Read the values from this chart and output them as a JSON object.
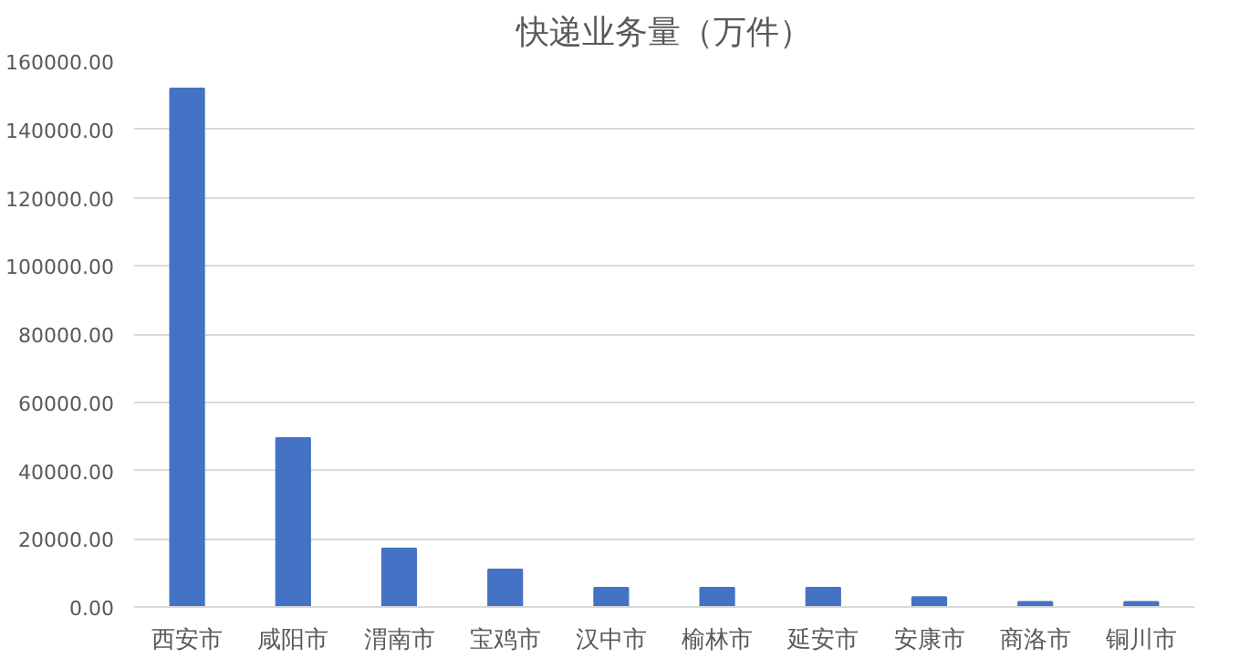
{
  "chart_data": {
    "type": "bar",
    "title": "快递业务量（万件）",
    "categories": [
      "西安市",
      "咸阳市",
      "渭南市",
      "宝鸡市",
      "汉中市",
      "榆林市",
      "延安市",
      "安康市",
      "商洛市",
      "铜川市"
    ],
    "values": [
      152000,
      49500,
      17100,
      11000,
      5600,
      5600,
      5600,
      2900,
      1500,
      1500
    ],
    "color": "#4472c4",
    "ylim": [
      0,
      160000
    ],
    "yticks": [
      {
        "value": 0,
        "label": "0.00"
      },
      {
        "value": 20000,
        "label": "20000.00"
      },
      {
        "value": 40000,
        "label": "40000.00"
      },
      {
        "value": 60000,
        "label": "60000.00"
      },
      {
        "value": 80000,
        "label": "80000.00"
      },
      {
        "value": 100000,
        "label": "100000.00"
      },
      {
        "value": 120000,
        "label": "120000.00"
      },
      {
        "value": 140000,
        "label": "140000.00"
      },
      {
        "value": 160000,
        "label": "160000.00"
      }
    ],
    "grid": "y"
  }
}
